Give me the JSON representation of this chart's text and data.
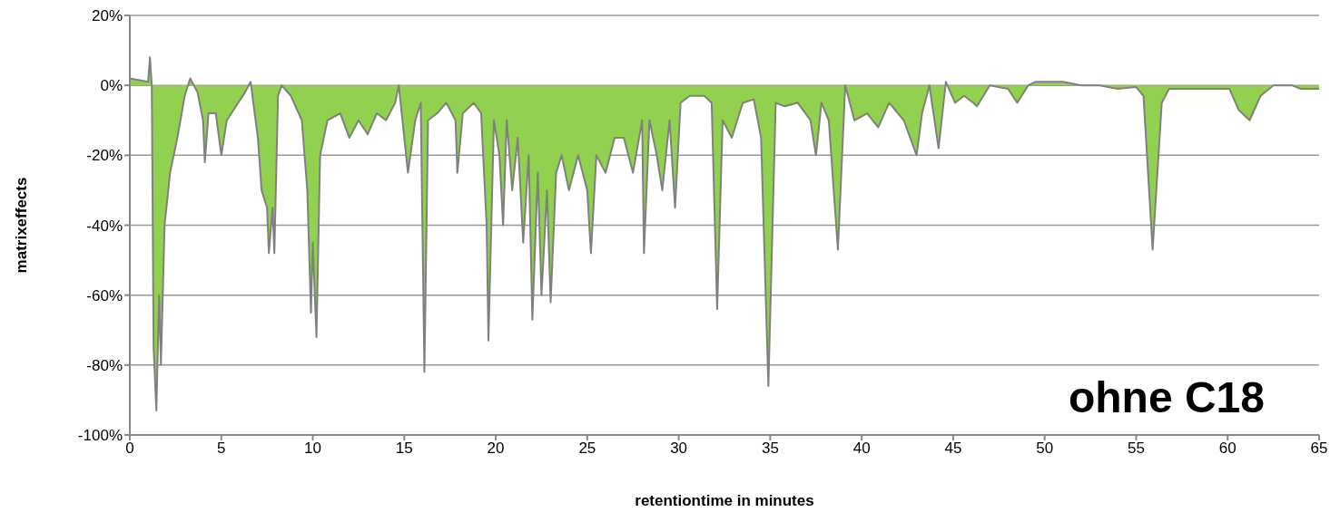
{
  "chart_data": {
    "type": "area",
    "xlabel": "retentiontime in minutes",
    "ylabel": "matrixeffects",
    "annotations": [
      "ohne C18"
    ],
    "xlim": [
      0,
      65
    ],
    "xticks": [
      0,
      5,
      10,
      15,
      20,
      25,
      30,
      35,
      40,
      45,
      50,
      55,
      60,
      65
    ],
    "ylim": [
      -100,
      20
    ],
    "yticks": [
      {
        "value": -100,
        "label": "-100%"
      },
      {
        "value": -80,
        "label": "-80%"
      },
      {
        "value": -60,
        "label": "-60%"
      },
      {
        "value": -40,
        "label": "-40%"
      },
      {
        "value": -20,
        "label": "-20%"
      },
      {
        "value": 0,
        "label": "0%"
      },
      {
        "value": 20,
        "label": "20%"
      }
    ],
    "grid": "y",
    "legend": false,
    "series": [
      {
        "color": "#92d050",
        "x": [
          0,
          1,
          1.1,
          1.2,
          1.3,
          1.45,
          1.6,
          1.7,
          1.9,
          2.2,
          2.6,
          3.0,
          3.3,
          3.7,
          4.0,
          4.1,
          4.3,
          4.7,
          5.0,
          5.3,
          5.8,
          6.3,
          6.6,
          7.0,
          7.2,
          7.5,
          7.6,
          7.8,
          7.9,
          8.1,
          8.3,
          8.8,
          9.4,
          9.7,
          9.9,
          10.0,
          10.2,
          10.4,
          10.8,
          11.5,
          12,
          12.5,
          13,
          13.5,
          14,
          14.5,
          14.7,
          15.0,
          15.2,
          15.6,
          15.9,
          16.1,
          16.3,
          16.8,
          17.3,
          17.8,
          17.9,
          18.2,
          18.8,
          19.2,
          19.5,
          19.6,
          19.9,
          20.2,
          20.4,
          20.6,
          20.9,
          21.2,
          21.5,
          21.8,
          22.0,
          22.3,
          22.5,
          22.8,
          23.0,
          23.3,
          23.6,
          24,
          24.5,
          25,
          25.2,
          25.5,
          26,
          26.5,
          27,
          27.5,
          28,
          28.1,
          28.4,
          28.8,
          29.1,
          29.5,
          29.8,
          30.1,
          30.6,
          31.4,
          31.8,
          32.1,
          32.4,
          32.9,
          33.5,
          34.1,
          34.5,
          34.9,
          35.3,
          35.8,
          36.5,
          37.2,
          37.5,
          37.8,
          38.2,
          38.7,
          39.1,
          39.6,
          40.3,
          40.9,
          41.5,
          42.3,
          43.0,
          43.3,
          43.7,
          44.2,
          44.6,
          45.1,
          45.6,
          46.1,
          46.3,
          47.0,
          48.0,
          48.5,
          49.1,
          49.5,
          50,
          51,
          52,
          53,
          54,
          55,
          55.4,
          55.9,
          56.4,
          56.8,
          58,
          59,
          60.1,
          60.6,
          61.2,
          61.8,
          62.5,
          63.5,
          64,
          65
        ],
        "values": [
          2,
          1,
          8,
          0,
          -75,
          -93,
          -60,
          -80,
          -40,
          -25,
          -15,
          -3,
          2,
          -2,
          -10,
          -22,
          -8,
          -8,
          -20,
          -10,
          -6,
          -2,
          1,
          -15,
          -30,
          -35,
          -48,
          -35,
          -48,
          -3,
          0,
          -3,
          -10,
          -30,
          -65,
          -45,
          -72,
          -20,
          -10,
          -8,
          -15,
          -10,
          -14,
          -8,
          -10,
          -5,
          0,
          -15,
          -25,
          -10,
          -5,
          -82,
          -10,
          -8,
          -5,
          -10,
          -25,
          -8,
          -5,
          -8,
          -40,
          -73,
          -10,
          -20,
          -40,
          -10,
          -30,
          -15,
          -45,
          -20,
          -67,
          -25,
          -60,
          -30,
          -62,
          -25,
          -20,
          -30,
          -20,
          -30,
          -48,
          -20,
          -25,
          -15,
          -15,
          -25,
          -10,
          -48,
          -10,
          -20,
          -30,
          -10,
          -35,
          -5,
          -3,
          -3,
          -5,
          -64,
          -10,
          -15,
          -5,
          -4,
          -15,
          -86,
          -5,
          -6,
          -5,
          -10,
          -20,
          -5,
          -10,
          -47,
          0,
          -10,
          -8,
          -12,
          -5,
          -10,
          -20,
          -8,
          0,
          -18,
          1,
          -5,
          -3,
          -5,
          -6,
          0,
          -1,
          -5,
          0,
          1,
          1,
          1,
          0,
          0,
          -1,
          -0.5,
          -3,
          -47,
          -5,
          -1,
          -1,
          -1,
          -1,
          -7,
          -10,
          -3,
          0,
          0,
          -1,
          -1
        ]
      }
    ]
  }
}
